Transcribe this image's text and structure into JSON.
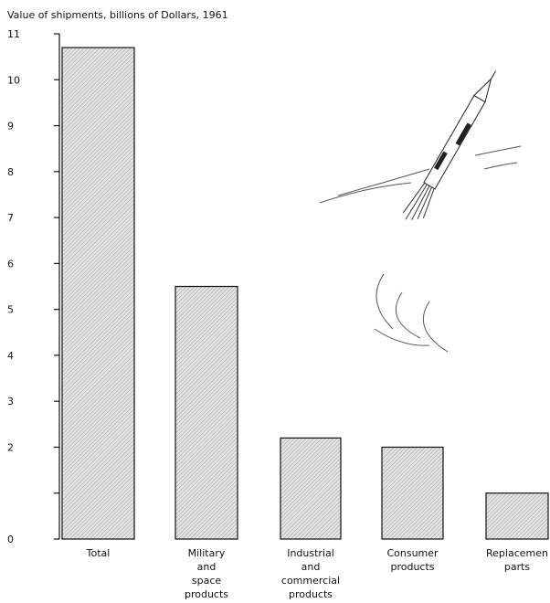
{
  "chart_data": {
    "type": "bar",
    "title": "Value of shipments, billions of Dollars, 1961",
    "categories": [
      "Total",
      "Military and space products",
      "Industrial and commercial products",
      "Consumer products",
      "Replacemen parts"
    ],
    "values": [
      10.7,
      5.5,
      2.2,
      2.0,
      1.0
    ],
    "color": "#d8d8d8",
    "ylim": [
      0,
      11
    ],
    "yticks": [
      0,
      {
        "value": 1,
        "label": null
      },
      2,
      3,
      4,
      5,
      6,
      7,
      8,
      9,
      10,
      11
    ]
  }
}
